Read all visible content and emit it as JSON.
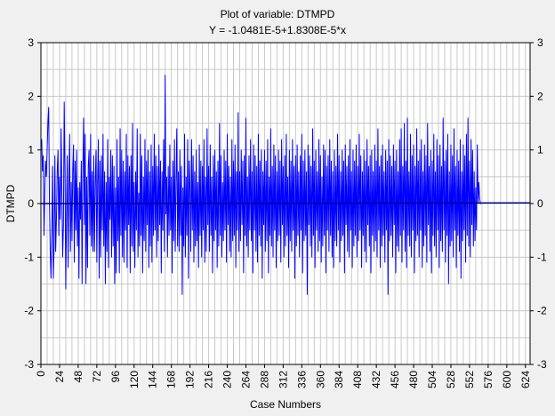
{
  "chart_data": {
    "type": "line",
    "title": "Plot of variable: DTMPD",
    "subtitle": "Y = -1.0481E-5+1.8308E-5*x",
    "xlabel": "Case Numbers",
    "ylabel": "DTMPD",
    "xlim": [
      0,
      630
    ],
    "ylim": [
      -3,
      3
    ],
    "x_ticks": [
      0,
      24,
      48,
      72,
      96,
      120,
      144,
      168,
      192,
      216,
      240,
      264,
      288,
      312,
      336,
      360,
      384,
      408,
      432,
      456,
      480,
      504,
      528,
      552,
      576,
      600,
      624
    ],
    "x_tick_labels": [
      "0",
      "24",
      "48",
      "72",
      "96",
      "120",
      "144",
      "168",
      "192",
      "216",
      "240",
      "264",
      "288",
      "312",
      "336",
      "360",
      "384",
      "408",
      "432",
      "456",
      "480",
      "504",
      "528",
      "552",
      "576",
      "600",
      "624"
    ],
    "y_ticks": [
      -3,
      -2,
      -1,
      0,
      1,
      2,
      3
    ],
    "y_tick_labels": [
      "-3",
      "-2",
      "-1",
      "0",
      "1",
      "2",
      "3"
    ],
    "grid": true,
    "colors": {
      "series": "#0000ff",
      "trend": "#000080",
      "grid": "#c8c8c8",
      "plot_bg": "#ffffff",
      "page_bg": "#f0f0f0"
    },
    "series": [
      {
        "x_start": 1,
        "x_step": 1,
        "values": [
          1.2,
          0.6,
          0.9,
          -0.6,
          0.2,
          0.8,
          0.5,
          1.0,
          1.5,
          1.8,
          0.0,
          -0.9,
          -1.4,
          -0.5,
          0.7,
          -1.4,
          -0.8,
          0.9,
          -0.9,
          -0.3,
          0.6,
          1.0,
          -0.6,
          0.5,
          -0.3,
          1.4,
          0.2,
          -1.0,
          -0.4,
          1.9,
          0.6,
          -1.6,
          -0.2,
          0.9,
          -1.2,
          0.3,
          1.3,
          -0.9,
          0.4,
          -0.7,
          0.6,
          1.1,
          -1.1,
          0.8,
          -0.5,
          1.0,
          -0.8,
          0.3,
          -1.4,
          0.4,
          -0.3,
          0.8,
          -1.5,
          0.6,
          1.6,
          -0.4,
          1.3,
          -1.5,
          0.5,
          -1.2,
          0.7,
          1.0,
          -0.6,
          1.3,
          -0.8,
          0.6,
          -0.9,
          0.9,
          -0.9,
          0.4,
          1.0,
          -1.1,
          0.4,
          1.2,
          -1.4,
          0.8,
          -1.0,
          0.9,
          -0.5,
          1.3,
          -0.8,
          0.6,
          -1.5,
          0.4,
          -0.9,
          1.2,
          -1.2,
          0.5,
          -0.3,
          1.0,
          -1.0,
          0.9,
          -0.8,
          0.7,
          -1.5,
          0.3,
          -1.3,
          1.2,
          -0.7,
          0.5,
          -1.3,
          1.4,
          -0.6,
          1.0,
          -1.0,
          0.8,
          -1.1,
          0.6,
          -0.5,
          1.3,
          -1.2,
          0.9,
          -0.4,
          0.7,
          -1.3,
          0.9,
          -0.8,
          1.5,
          -0.9,
          0.4,
          -1.2,
          0.6,
          -0.5,
          1.4,
          -1.0,
          0.2,
          -0.8,
          1.3,
          -0.6,
          0.9,
          -1.3,
          0.5,
          -0.7,
          1.2,
          -0.9,
          0.8,
          -0.4,
          1.0,
          -1.2,
          0.6,
          -0.8,
          1.1,
          -1.1,
          0.7,
          -0.6,
          1.3,
          -0.5,
          0.9,
          -1.0,
          0.7,
          -0.7,
          1.1,
          -0.4,
          0.8,
          -1.3,
          0.6,
          -0.5,
          1.2,
          -0.9,
          2.4,
          -0.2,
          0.5,
          -1.0,
          0.7,
          -0.6,
          1.1,
          -0.5,
          0.5,
          -1.3,
          0.8,
          -0.7,
          1.2,
          -0.9,
          0.4,
          1.4,
          -0.8,
          0.6,
          -0.9,
          1.0,
          -0.6,
          0.7,
          -1.7,
          0.3,
          -0.8,
          1.3,
          -1.0,
          0.5,
          -0.6,
          1.2,
          -1.4,
          0.8,
          0.3,
          -0.9,
          1.2,
          -0.5,
          0.9,
          -1.1,
          0.6,
          -0.8,
          1.0,
          -0.7,
          0.4,
          -1.2,
          1.1,
          -0.6,
          0.8,
          -1.0,
          0.7,
          -0.5,
          1.2,
          -1.1,
          0.5,
          -0.9,
          1.4,
          -0.4,
          0.7,
          -0.9,
          1.1,
          -0.6,
          0.5,
          -1.3,
          0.9,
          -0.7,
          1.0,
          -0.5,
          0.6,
          -1.2,
          0.8,
          -0.8,
          1.5,
          -0.6,
          0.9,
          -1.0,
          0.4,
          -0.7,
          1.0,
          -0.5,
          0.8,
          -1.1,
          1.3,
          -0.4,
          0.7,
          -0.9,
          0.5,
          -1.0,
          1.2,
          -0.7,
          0.8,
          -0.6,
          1.1,
          -1.2,
          0.6,
          -0.5,
          1.7,
          -0.9,
          0.6,
          -0.7,
          1.0,
          -0.4,
          0.8,
          -1.3,
          0.9,
          -0.6,
          1.6,
          -0.8,
          0.5,
          -1.0,
          0.9,
          -0.5,
          1.2,
          -0.7,
          0.6,
          -1.3,
          1.1,
          -0.5,
          0.9,
          -0.9,
          0.7,
          -1.1,
          1.3,
          -0.6,
          0.8,
          -0.8,
          1.0,
          -1.4,
          0.6,
          -0.4,
          1.0,
          -0.9,
          0.8,
          -0.7,
          1.2,
          -1.3,
          0.5,
          -0.6,
          1.4,
          -0.8,
          0.7,
          -1.0,
          1.1,
          -0.5,
          0.9,
          -1.2,
          0.6,
          -0.7,
          1.0,
          -0.6,
          0.8,
          -1.1,
          1.2,
          -0.4,
          0.7,
          -1.0,
          0.9,
          -0.8,
          1.3,
          -0.6,
          0.5,
          -1.2,
          1.0,
          -0.7,
          0.8,
          -0.9,
          1.2,
          -0.5,
          0.7,
          -1.4,
          0.9,
          -0.8,
          1.1,
          -0.6,
          0.6,
          -1.0,
          0.9,
          -0.5,
          1.3,
          -1.3,
          0.8,
          -0.7,
          1.0,
          -0.6,
          0.6,
          -1.7,
          1.1,
          -0.4,
          0.9,
          -0.8,
          0.7,
          -1.0,
          1.4,
          -0.6,
          0.8,
          -1.2,
          1.0,
          -0.5,
          0.6,
          -0.9,
          1.2,
          -0.7,
          0.9,
          -1.1,
          0.5,
          -0.8,
          1.1,
          -0.6,
          1.0,
          -1.3,
          0.7,
          -0.5,
          0.9,
          -0.9,
          1.2,
          -0.6,
          0.8,
          -1.0,
          0.6,
          -1.2,
          1.0,
          -0.7,
          0.7,
          -0.8,
          1.3,
          -0.5,
          0.9,
          -1.1,
          0.6,
          -0.7,
          1.0,
          -0.6,
          0.8,
          -1.3,
          1.1,
          -0.4,
          0.7,
          -0.9,
          0.9,
          -1.0,
          1.2,
          -0.5,
          0.6,
          -1.2,
          1.0,
          -0.8,
          0.8,
          -0.6,
          1.1,
          -1.0,
          0.7,
          -0.7,
          1.3,
          -0.5,
          0.9,
          -1.2,
          0.6,
          -0.6,
          1.0,
          -0.9,
          0.8,
          -1.1,
          1.2,
          -0.4,
          0.7,
          -0.8,
          0.9,
          -1.3,
          1.0,
          -0.6,
          0.6,
          -0.9,
          1.1,
          -0.7,
          0.8,
          -1.0,
          1.4,
          -0.5,
          0.7,
          -1.2,
          0.9,
          -0.8,
          1.1,
          -0.6,
          0.6,
          -1.1,
          1.0,
          -0.5,
          0.8,
          -1.7,
          1.2,
          -0.7,
          0.9,
          -0.6,
          0.7,
          -1.0,
          1.1,
          -0.4,
          0.8,
          -1.3,
          1.0,
          -0.8,
          0.6,
          -0.9,
          1.2,
          -0.6,
          1.4,
          -1.1,
          0.7,
          -0.5,
          1.5,
          -0.9,
          0.8,
          -1.2,
          1.6,
          -0.6,
          0.6,
          -0.8,
          1.3,
          -1.0,
          0.9,
          -0.5,
          1.1,
          -1.3,
          0.7,
          -0.7,
          1.4,
          -0.6,
          0.8,
          -1.0,
          1.0,
          -0.5,
          1.2,
          -1.2,
          0.6,
          -0.8,
          1.1,
          -0.6,
          0.9,
          -1.1,
          1.5,
          -0.4,
          0.7,
          -0.9,
          1.0,
          -1.3,
          0.8,
          -0.6,
          1.3,
          -0.8,
          0.6,
          -1.0,
          1.2,
          -0.5,
          0.9,
          -1.2,
          1.1,
          -0.7,
          0.7,
          -0.9,
          1.6,
          -0.5,
          0.8,
          -1.1,
          1.0,
          -0.6,
          1.3,
          -1.5,
          0.6,
          -0.8,
          1.1,
          -0.7,
          0.9,
          -1.0,
          1.4,
          -0.5,
          0.7,
          -1.2,
          1.0,
          -0.6,
          0.8,
          -0.9,
          1.2,
          -1.4,
          0.6,
          -0.7,
          1.1,
          -0.5,
          0.9,
          -1.1,
          1.3,
          -0.6,
          1.6,
          -0.8,
          0.8,
          -1.0,
          1.2,
          -0.4,
          1.0,
          -0.8,
          0.6,
          -0.7,
          0.3,
          -0.5,
          1.1,
          0.0,
          0.4,
          0.1,
          0.0,
          0.0
        ]
      },
      {
        "equation": "Y = -1.0481E-5+1.8308E-5*x",
        "intercept": -1.0481e-05,
        "slope": 1.8308e-05
      }
    ]
  }
}
